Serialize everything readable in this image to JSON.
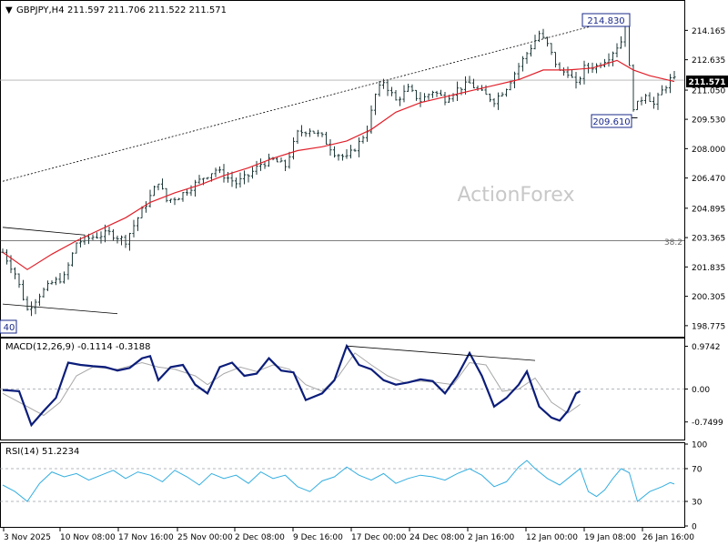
{
  "header": {
    "symbol": "GBPJPY,H4",
    "ohlc": "211.597 211.706 211.522 211.571",
    "dropdown_glyph": "▼"
  },
  "watermark": "ActionForex",
  "colors": {
    "background": "#ffffff",
    "candle": "#1f3a3a",
    "ma": "#e0202a",
    "macd": "#0b1d7a",
    "signal": "#a8a8a8",
    "rsi": "#34aee0",
    "grid": "#9aa0a6",
    "price_tag_bg": "#000000",
    "price_tag_fg": "#ffffff",
    "annotation_box": "#1a2a8a"
  },
  "annotations": {
    "high_label": "214.830",
    "low_label": "209.610",
    "left_low_label": "40",
    "fib_label": "38.2",
    "current_price": "211.571"
  },
  "chart_data": [
    {
      "type": "candlestick",
      "panel": "price",
      "title": "GBPJPY,H4",
      "ylim": [
        198.2,
        215.7
      ],
      "yticks": [
        "214.165",
        "212.635",
        "211.050",
        "209.530",
        "208.000",
        "206.470",
        "204.895",
        "203.365",
        "201.835",
        "200.305",
        "198.775"
      ],
      "xticks": [
        "3 Nov 2025",
        "10 Nov 08:00",
        "17 Nov 16:00",
        "25 Nov 00:00",
        "2 Dec 08:00",
        "9 Dec 16:00",
        "17 Dec 00:00",
        "24 Dec 08:00",
        "2 Jan 16:00",
        "12 Jan 00:00",
        "19 Jan 08:00",
        "26 Jan 16:00"
      ],
      "close_path": [
        [
          0,
          202.6
        ],
        [
          3,
          201.5
        ],
        [
          6,
          199.6
        ],
        [
          9,
          200.4
        ],
        [
          12,
          201.0
        ],
        [
          15,
          201.3
        ],
        [
          18,
          203.1
        ],
        [
          22,
          203.4
        ],
        [
          26,
          203.6
        ],
        [
          30,
          203.2
        ],
        [
          33,
          204.4
        ],
        [
          36,
          205.5
        ],
        [
          38,
          206.3
        ],
        [
          40,
          205.3
        ],
        [
          43,
          205.5
        ],
        [
          46,
          206.0
        ],
        [
          49,
          206.5
        ],
        [
          52,
          206.9
        ],
        [
          54,
          206.6
        ],
        [
          57,
          206.2
        ],
        [
          60,
          206.6
        ],
        [
          63,
          207.2
        ],
        [
          66,
          207.4
        ],
        [
          69,
          207.1
        ],
        [
          72,
          208.8
        ],
        [
          75,
          209.0
        ],
        [
          78,
          208.6
        ],
        [
          81,
          207.8
        ],
        [
          84,
          207.5
        ],
        [
          87,
          208.3
        ],
        [
          89,
          209.0
        ],
        [
          91,
          210.8
        ],
        [
          93,
          211.5
        ],
        [
          96,
          210.5
        ],
        [
          99,
          211.1
        ],
        [
          102,
          210.5
        ],
        [
          105,
          211.0
        ],
        [
          108,
          210.6
        ],
        [
          111,
          211.1
        ],
        [
          114,
          211.4
        ],
        [
          117,
          210.9
        ],
        [
          120,
          210.5
        ],
        [
          123,
          211.2
        ],
        [
          126,
          212.3
        ],
        [
          129,
          213.3
        ],
        [
          131,
          214.0
        ],
        [
          133,
          213.4
        ],
        [
          136,
          212.0
        ],
        [
          138,
          212.0
        ],
        [
          140,
          211.3
        ],
        [
          142,
          212.2
        ],
        [
          145,
          212.3
        ],
        [
          148,
          212.8
        ],
        [
          151,
          213.6
        ],
        [
          152,
          214.6
        ],
        [
          153,
          212.2
        ],
        [
          154,
          210.2
        ],
        [
          155,
          210.3
        ],
        [
          157,
          210.9
        ],
        [
          159,
          210.3
        ],
        [
          161,
          211.0
        ],
        [
          163,
          211.6
        ],
        [
          164,
          211.57
        ]
      ],
      "ma_path": [
        [
          0,
          202.6
        ],
        [
          6,
          201.7
        ],
        [
          12,
          202.5
        ],
        [
          18,
          203.2
        ],
        [
          24,
          203.8
        ],
        [
          30,
          204.4
        ],
        [
          36,
          205.2
        ],
        [
          42,
          205.7
        ],
        [
          48,
          206.1
        ],
        [
          54,
          206.6
        ],
        [
          60,
          207.0
        ],
        [
          66,
          207.5
        ],
        [
          72,
          207.9
        ],
        [
          78,
          208.1
        ],
        [
          84,
          208.4
        ],
        [
          90,
          209.0
        ],
        [
          96,
          209.9
        ],
        [
          102,
          210.4
        ],
        [
          108,
          210.7
        ],
        [
          114,
          211.0
        ],
        [
          120,
          211.3
        ],
        [
          126,
          211.6
        ],
        [
          132,
          212.1
        ],
        [
          138,
          212.1
        ],
        [
          144,
          212.2
        ],
        [
          150,
          212.6
        ],
        [
          154,
          212.1
        ],
        [
          158,
          211.8
        ],
        [
          164,
          211.5
        ]
      ],
      "trendline_upper": [
        [
          0,
          206.3
        ],
        [
          153,
          214.9
        ]
      ],
      "channel_left_top": [
        [
          0,
          203.9
        ],
        [
          20,
          203.5
        ]
      ],
      "channel_left_bottom": [
        [
          0,
          199.9
        ],
        [
          28,
          199.4
        ]
      ],
      "fib_level": {
        "label": "38.2",
        "value": 203.2
      },
      "current_line": 211.571,
      "marked_high": {
        "x": 153,
        "value": 214.83
      },
      "marked_low": {
        "x": 155,
        "value": 209.61
      }
    },
    {
      "type": "line",
      "panel": "macd",
      "title": "MACD(12,26,9) -0.1114 -0.3188",
      "ylim": [
        -1.15,
        1.15
      ],
      "yticks": [
        "0.9742",
        "0.00",
        "-0.7499"
      ],
      "series": [
        {
          "name": "MACD",
          "points": [
            [
              0,
              -0.02
            ],
            [
              4,
              -0.05
            ],
            [
              7,
              -0.82
            ],
            [
              10,
              -0.5
            ],
            [
              13,
              -0.2
            ],
            [
              16,
              0.6
            ],
            [
              19,
              0.55
            ],
            [
              22,
              0.52
            ],
            [
              25,
              0.5
            ],
            [
              28,
              0.42
            ],
            [
              31,
              0.48
            ],
            [
              34,
              0.7
            ],
            [
              36,
              0.75
            ],
            [
              38,
              0.2
            ],
            [
              41,
              0.5
            ],
            [
              44,
              0.55
            ],
            [
              47,
              0.1
            ],
            [
              50,
              -0.1
            ],
            [
              53,
              0.5
            ],
            [
              56,
              0.6
            ],
            [
              59,
              0.3
            ],
            [
              62,
              0.35
            ],
            [
              65,
              0.7
            ],
            [
              68,
              0.42
            ],
            [
              71,
              0.38
            ],
            [
              74,
              -0.25
            ],
            [
              78,
              -0.1
            ],
            [
              81,
              0.2
            ],
            [
              84,
              0.98
            ],
            [
              87,
              0.55
            ],
            [
              90,
              0.45
            ],
            [
              93,
              0.2
            ],
            [
              96,
              0.1
            ],
            [
              99,
              0.15
            ],
            [
              102,
              0.22
            ],
            [
              105,
              0.18
            ],
            [
              108,
              -0.1
            ],
            [
              111,
              0.3
            ],
            [
              114,
              0.82
            ],
            [
              117,
              0.3
            ],
            [
              120,
              -0.4
            ],
            [
              123,
              -0.2
            ],
            [
              126,
              0.1
            ],
            [
              128,
              0.4
            ],
            [
              131,
              -0.4
            ],
            [
              134,
              -0.65
            ],
            [
              136,
              -0.72
            ],
            [
              138,
              -0.5
            ],
            [
              140,
              -0.1
            ],
            [
              141,
              -0.05
            ]
          ]
        },
        {
          "name": "Signal",
          "points": [
            [
              0,
              -0.1
            ],
            [
              6,
              -0.4
            ],
            [
              10,
              -0.6
            ],
            [
              14,
              -0.3
            ],
            [
              18,
              0.3
            ],
            [
              22,
              0.5
            ],
            [
              28,
              0.45
            ],
            [
              34,
              0.6
            ],
            [
              38,
              0.5
            ],
            [
              42,
              0.45
            ],
            [
              47,
              0.3
            ],
            [
              50,
              0.1
            ],
            [
              54,
              0.35
            ],
            [
              58,
              0.5
            ],
            [
              62,
              0.4
            ],
            [
              66,
              0.55
            ],
            [
              70,
              0.45
            ],
            [
              74,
              0.1
            ],
            [
              78,
              -0.05
            ],
            [
              82,
              0.3
            ],
            [
              86,
              0.82
            ],
            [
              90,
              0.55
            ],
            [
              94,
              0.3
            ],
            [
              98,
              0.15
            ],
            [
              102,
              0.18
            ],
            [
              106,
              0.15
            ],
            [
              110,
              0.1
            ],
            [
              114,
              0.6
            ],
            [
              118,
              0.55
            ],
            [
              122,
              -0.05
            ],
            [
              126,
              0.0
            ],
            [
              130,
              0.25
            ],
            [
              134,
              -0.3
            ],
            [
              138,
              -0.55
            ],
            [
              141,
              -0.35
            ]
          ]
        }
      ],
      "divergence_line": [
        [
          84,
          0.98
        ],
        [
          130,
          0.65
        ]
      ]
    },
    {
      "type": "line",
      "panel": "rsi",
      "title": "RSI(14) 51.2234",
      "ylim": [
        0,
        100
      ],
      "yticks": [
        "100",
        "70",
        "30",
        "0"
      ],
      "levels": [
        70,
        30
      ],
      "series": [
        {
          "name": "RSI",
          "points": [
            [
              0,
              50
            ],
            [
              3,
              42
            ],
            [
              6,
              30
            ],
            [
              9,
              52
            ],
            [
              12,
              66
            ],
            [
              15,
              60
            ],
            [
              18,
              64
            ],
            [
              21,
              56
            ],
            [
              24,
              62
            ],
            [
              27,
              68
            ],
            [
              30,
              58
            ],
            [
              33,
              66
            ],
            [
              36,
              62
            ],
            [
              39,
              54
            ],
            [
              42,
              68
            ],
            [
              45,
              60
            ],
            [
              48,
              50
            ],
            [
              51,
              64
            ],
            [
              54,
              58
            ],
            [
              57,
              62
            ],
            [
              60,
              52
            ],
            [
              63,
              66
            ],
            [
              66,
              58
            ],
            [
              69,
              62
            ],
            [
              72,
              48
            ],
            [
              75,
              42
            ],
            [
              78,
              55
            ],
            [
              81,
              60
            ],
            [
              84,
              72
            ],
            [
              87,
              62
            ],
            [
              90,
              56
            ],
            [
              93,
              64
            ],
            [
              96,
              52
            ],
            [
              99,
              58
            ],
            [
              102,
              62
            ],
            [
              105,
              60
            ],
            [
              108,
              56
            ],
            [
              111,
              64
            ],
            [
              114,
              70
            ],
            [
              117,
              62
            ],
            [
              120,
              48
            ],
            [
              123,
              54
            ],
            [
              126,
              72
            ],
            [
              128,
              80
            ],
            [
              130,
              70
            ],
            [
              133,
              58
            ],
            [
              136,
              50
            ],
            [
              139,
              62
            ],
            [
              141,
              70
            ],
            [
              143,
              42
            ],
            [
              145,
              36
            ],
            [
              147,
              44
            ],
            [
              149,
              58
            ],
            [
              151,
              70
            ],
            [
              153,
              65
            ],
            [
              155,
              30
            ],
            [
              158,
              42
            ],
            [
              161,
              48
            ],
            [
              163,
              53
            ],
            [
              164,
              51.2
            ]
          ]
        }
      ]
    }
  ]
}
